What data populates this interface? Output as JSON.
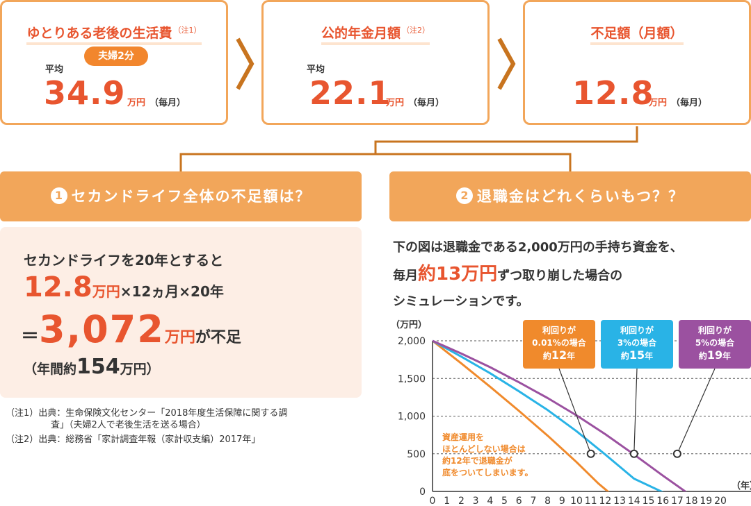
{
  "boxes": [
    {
      "title": "ゆとりある老後の生活費",
      "note": "（注1）",
      "badge": "夫婦2分",
      "avg_label": "平均",
      "value": "34.9",
      "unit": "万円",
      "per": "（毎月）"
    },
    {
      "title": "公的年金月額",
      "note": "（注2）",
      "avg_label": "平均",
      "value": "22.1",
      "unit": "万円",
      "per": "（毎月）"
    },
    {
      "title": "不足額（月額）",
      "value": "12.8",
      "unit": "万円",
      "per": "（毎月）"
    }
  ],
  "section1": {
    "num": "1",
    "title": "セカンドライフ全体の不足額は？",
    "line1": "セカンドライフを20年とすると",
    "line2_value": "12.8",
    "line2_unit": "万円",
    "line2_rest": "×12ヵ月×20年",
    "line3_eq": "＝",
    "line3_value": "3,072",
    "line3_unit": "万円",
    "line3_rest": "が不足",
    "line4_pre": "（年間約",
    "line4_value": "154",
    "line4_post": "万円）"
  },
  "notes": [
    "（注1）出典：生命保険文化センター「2018年度生活保障に関する調",
    "　　　　　査」（夫婦2人で老後生活を送る場合）",
    "（注2）出典：総務省「家計調査年報（家計収支編）2017年」"
  ],
  "section2": {
    "num": "2",
    "title": "退職金はどれくらいもつ？？",
    "para_line1": "下の図は退職金である2,000万円の手持ち資金を、",
    "para_line2_pre": "毎月",
    "para_line2_em": "約13万円",
    "para_line2_post": "ずつ取り崩した場合の",
    "para_line3": "シミュレーションです。"
  },
  "chart_data": {
    "type": "line",
    "ylabel": "（万円）",
    "xlabel": "（年）",
    "ylim": [
      0,
      2000
    ],
    "xlim": [
      0,
      20
    ],
    "yticks": [
      "2,000",
      "1,500",
      "1,000",
      "500",
      "0"
    ],
    "xticks": [
      "0",
      "1",
      "2",
      "3",
      "4",
      "5",
      "6",
      "7",
      "8",
      "9",
      "10",
      "11",
      "12",
      "13",
      "14",
      "15",
      "16",
      "17",
      "18",
      "19",
      "20"
    ],
    "series": [
      {
        "name": "利回りが0.01%の場合",
        "color": "#f08a2c",
        "x": [
          0,
          2,
          4,
          6,
          8,
          10,
          11.5,
          12.8
        ],
        "y": [
          2000,
          1700,
          1390,
          1070,
          740,
          390,
          110,
          -100
        ]
      },
      {
        "name": "利回りが3%の場合",
        "color": "#29b3e6",
        "x": [
          0,
          2,
          4,
          6,
          8,
          10,
          12,
          14,
          16
        ],
        "y": [
          2000,
          1790,
          1570,
          1330,
          1080,
          800,
          490,
          170,
          -10
        ]
      },
      {
        "name": "利回りが5%の場合",
        "color": "#9b51a0",
        "x": [
          0,
          2,
          4,
          6,
          8,
          10,
          12,
          14,
          16,
          18,
          19.3
        ],
        "y": [
          2000,
          1830,
          1650,
          1450,
          1240,
          1010,
          760,
          490,
          210,
          -60,
          -200
        ]
      }
    ],
    "markers": [
      {
        "x": 11,
        "y": 500
      },
      {
        "x": 14,
        "y": 500
      },
      {
        "x": 17,
        "y": 500
      }
    ],
    "callouts": [
      {
        "l1": "利回りが",
        "l2": "0.01%の場合",
        "pre": "約",
        "num": "12",
        "post": "年",
        "color": "#f08a2c"
      },
      {
        "l1": "利回りが",
        "l2": "3%の場合",
        "pre": "約",
        "num": "15",
        "post": "年",
        "color": "#29b3e6"
      },
      {
        "l1": "利回りが",
        "l2": "5%の場合",
        "pre": "約",
        "num": "19",
        "post": "年",
        "color": "#9b51a0"
      }
    ],
    "annotation": [
      "資産運用を",
      "ほとんどしない場合は",
      "約12年で退職金が",
      "底をついてしまいます。"
    ]
  }
}
